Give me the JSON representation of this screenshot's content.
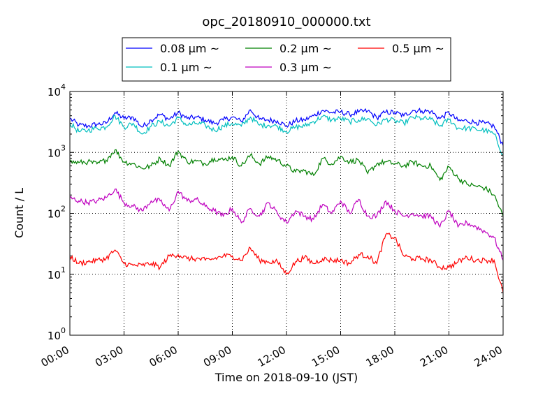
{
  "chart_data": {
    "type": "line",
    "title": "opc_20180910_000000.txt",
    "xlabel": "Time on 2018-09-10 (JST)",
    "ylabel": "Count / L",
    "yscale": "log",
    "ylim": [
      1,
      10000
    ],
    "x_unit": "hours",
    "xlim": [
      0,
      24
    ],
    "x_tick_labels": [
      "00:00",
      "03:00",
      "06:00",
      "09:00",
      "12:00",
      "15:00",
      "18:00",
      "21:00",
      "24:00"
    ],
    "y_tick_labels": [
      {
        "base": "10",
        "exp": "0"
      },
      {
        "base": "10",
        "exp": "1"
      },
      {
        "base": "10",
        "exp": "2"
      },
      {
        "base": "10",
        "exp": "3"
      },
      {
        "base": "10",
        "exp": "4"
      }
    ],
    "grid": true,
    "legend_position": "top-center",
    "x": [
      0,
      0.5,
      1,
      1.5,
      2,
      2.5,
      3,
      3.5,
      4,
      4.5,
      5,
      5.5,
      6,
      6.5,
      7,
      7.5,
      8,
      8.5,
      9,
      9.5,
      10,
      10.5,
      11,
      11.5,
      12,
      12.5,
      13,
      13.5,
      14,
      14.5,
      15,
      15.5,
      16,
      16.5,
      17,
      17.5,
      18,
      18.5,
      19,
      19.5,
      20,
      20.5,
      21,
      21.5,
      22,
      22.5,
      23,
      23.5,
      24
    ],
    "series": [
      {
        "name": "0.08 μm ~",
        "color": "#0000ff",
        "values": [
          3600,
          2800,
          2700,
          2900,
          3000,
          4500,
          3600,
          3800,
          2600,
          3400,
          4200,
          3500,
          4500,
          3600,
          3800,
          3400,
          3000,
          3400,
          3800,
          3200,
          5000,
          3500,
          3400,
          3300,
          2700,
          3300,
          3400,
          4000,
          4900,
          4500,
          4600,
          4200,
          4600,
          4800,
          3700,
          4600,
          4500,
          4000,
          4900,
          4800,
          4700,
          3600,
          4500,
          3300,
          3300,
          3100,
          3000,
          2700,
          1300
        ]
      },
      {
        "name": "0.1 μm ~",
        "color": "#00bfbf",
        "values": [
          3000,
          2200,
          2300,
          2500,
          2600,
          4000,
          2600,
          3000,
          2000,
          2700,
          3200,
          2700,
          3700,
          2800,
          3000,
          2800,
          2300,
          2700,
          3000,
          2700,
          3800,
          2800,
          2800,
          2700,
          2200,
          2600,
          2700,
          3200,
          3900,
          3400,
          3600,
          3200,
          3400,
          3600,
          2800,
          3500,
          3300,
          3000,
          3800,
          3600,
          3500,
          2700,
          3500,
          2500,
          2500,
          2400,
          2300,
          2000,
          900
        ]
      },
      {
        "name": "0.2 μm ~",
        "color": "#008000",
        "values": [
          700,
          680,
          700,
          650,
          750,
          1100,
          700,
          650,
          550,
          600,
          800,
          600,
          1050,
          700,
          720,
          650,
          800,
          750,
          850,
          600,
          900,
          650,
          850,
          750,
          600,
          480,
          500,
          420,
          800,
          650,
          850,
          700,
          750,
          450,
          650,
          700,
          650,
          600,
          700,
          600,
          600,
          350,
          580,
          380,
          300,
          280,
          260,
          200,
          90
        ]
      },
      {
        "name": "0.3 μm ~",
        "color": "#bf00bf",
        "values": [
          180,
          160,
          150,
          160,
          180,
          250,
          150,
          130,
          110,
          160,
          160,
          110,
          230,
          160,
          170,
          130,
          110,
          90,
          120,
          70,
          120,
          90,
          150,
          100,
          70,
          110,
          90,
          80,
          140,
          100,
          160,
          100,
          170,
          90,
          90,
          160,
          110,
          90,
          100,
          90,
          90,
          60,
          110,
          60,
          70,
          60,
          50,
          40,
          17
        ]
      },
      {
        "name": "0.5 μm ~",
        "color": "#ff0000",
        "values": [
          20,
          15,
          16,
          17,
          18,
          25,
          15,
          14,
          14,
          15,
          13,
          20,
          21,
          18,
          18,
          17,
          18,
          20,
          20,
          17,
          27,
          17,
          16,
          16,
          10,
          16,
          19,
          15,
          18,
          17,
          17,
          15,
          21,
          20,
          15,
          45,
          40,
          20,
          18,
          18,
          17,
          13,
          13,
          16,
          19,
          17,
          17,
          17,
          5
        ]
      }
    ]
  }
}
